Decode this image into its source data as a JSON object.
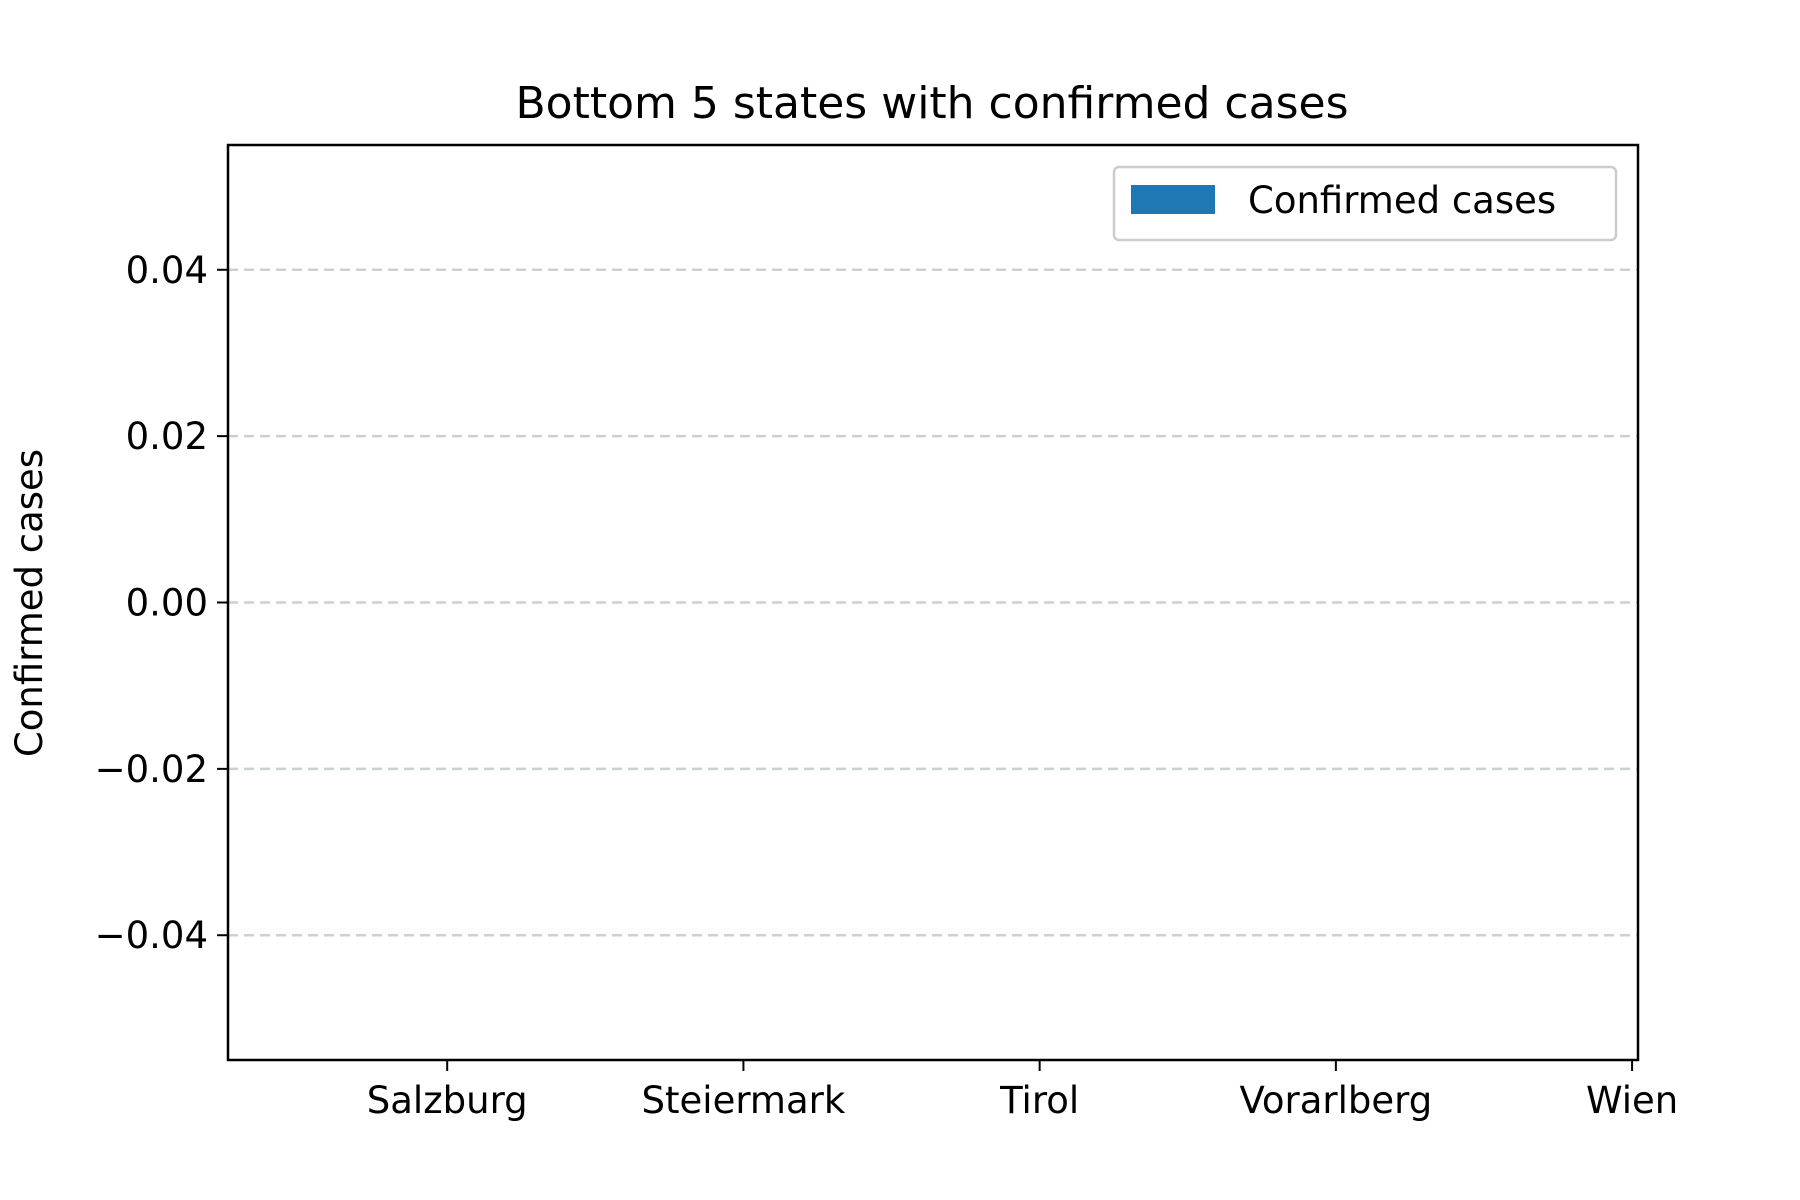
{
  "chart_data": {
    "type": "bar",
    "title": "Bottom 5 states with confirmed cases",
    "xlabel": "",
    "ylabel": "Confirmed cases",
    "categories": [
      "Salzburg",
      "Steiermark",
      "Tirol",
      "Vorarlberg",
      "Wien"
    ],
    "series": [
      {
        "name": "Confirmed cases",
        "values": [
          0,
          0,
          0,
          0,
          0
        ],
        "color": "#1f77b4"
      }
    ],
    "ylim": [
      -0.055,
      0.055
    ],
    "xlim": [
      -0.74,
      4.02
    ],
    "yticks": [
      -0.04,
      -0.02,
      0.0,
      0.02,
      0.04
    ],
    "ytick_labels": [
      "−0.04",
      "−0.02",
      "0.00",
      "0.02",
      "0.04"
    ],
    "grid": {
      "axis": "y",
      "style": "dashed",
      "color": "#c7d3cf"
    },
    "legend": {
      "position": "top-right",
      "entries": [
        "Confirmed cases"
      ]
    }
  }
}
